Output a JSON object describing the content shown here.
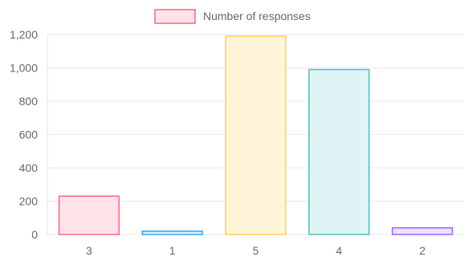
{
  "chart_data": {
    "type": "bar",
    "categories": [
      "3",
      "1",
      "5",
      "4",
      "2"
    ],
    "series": [
      {
        "name": "Number of responses",
        "values": [
          230,
          20,
          1190,
          990,
          40
        ]
      }
    ],
    "bar_colors": [
      {
        "fill": "#ffe3e8",
        "stroke": "#ff6384"
      },
      {
        "fill": "#dcefff",
        "stroke": "#36a2eb"
      },
      {
        "fill": "#fff6d9",
        "stroke": "#ffce56"
      },
      {
        "fill": "#dff5f5",
        "stroke": "#4bc0c0"
      },
      {
        "fill": "#ebe3ff",
        "stroke": "#9966ff"
      }
    ],
    "legend": {
      "label": "Number of responses",
      "placement": "top-center",
      "swatch_fill": "#ffe3e8",
      "swatch_stroke": "#ff6384"
    },
    "yticks": [
      "0",
      "200",
      "400",
      "600",
      "800",
      "1,000",
      "1,200"
    ],
    "ytick_values": [
      0,
      200,
      400,
      600,
      800,
      1000,
      1200
    ],
    "ylim": [
      0,
      1200
    ],
    "grid": true,
    "grid_color": "#e9e9e9",
    "axis_text_color": "#666666"
  }
}
